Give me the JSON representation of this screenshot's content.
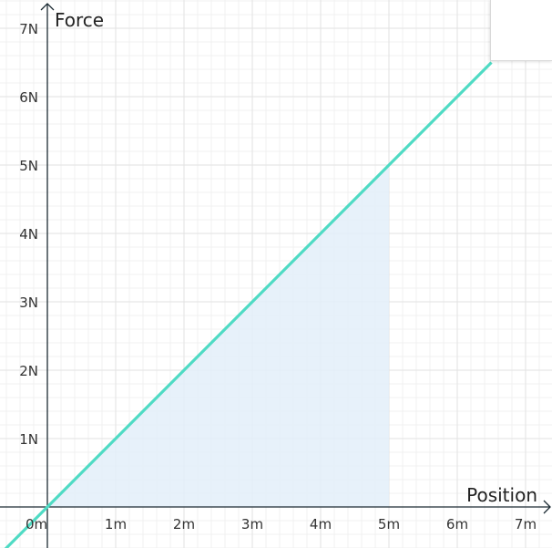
{
  "chart_data": {
    "type": "line",
    "xlabel": "Position",
    "ylabel": "Force",
    "x_unit": "m",
    "y_unit": "N",
    "xlim": [
      -0.7,
      7.35
    ],
    "ylim": [
      -0.6,
      7.35
    ],
    "x_ticks": [
      0,
      1,
      2,
      3,
      4,
      5,
      6,
      7
    ],
    "y_ticks": [
      1,
      2,
      3,
      4,
      5,
      6,
      7
    ],
    "x_tick_labels": [
      "0m",
      "1m",
      "2m",
      "3m",
      "4m",
      "5m",
      "6m",
      "7m"
    ],
    "y_tick_labels": [
      "1N",
      "2N",
      "3N",
      "4N",
      "5N",
      "6N",
      "7N"
    ],
    "grid": true,
    "grid_minor": true,
    "series": [
      {
        "type": "line",
        "x": [
          -0.7,
          6.5
        ],
        "y": [
          -0.7,
          6.5
        ],
        "color": "#4fdbc4"
      }
    ],
    "shaded_region": {
      "under": "line",
      "x_from": 0,
      "x_to": 5,
      "color": "#e3eef9"
    }
  },
  "colors": {
    "axis": "#1c2b33",
    "grid_major": "#e2e2e2",
    "grid_minor": "#f1f1f1",
    "line": "#4fdbc4",
    "fill": "#e3eef9"
  }
}
